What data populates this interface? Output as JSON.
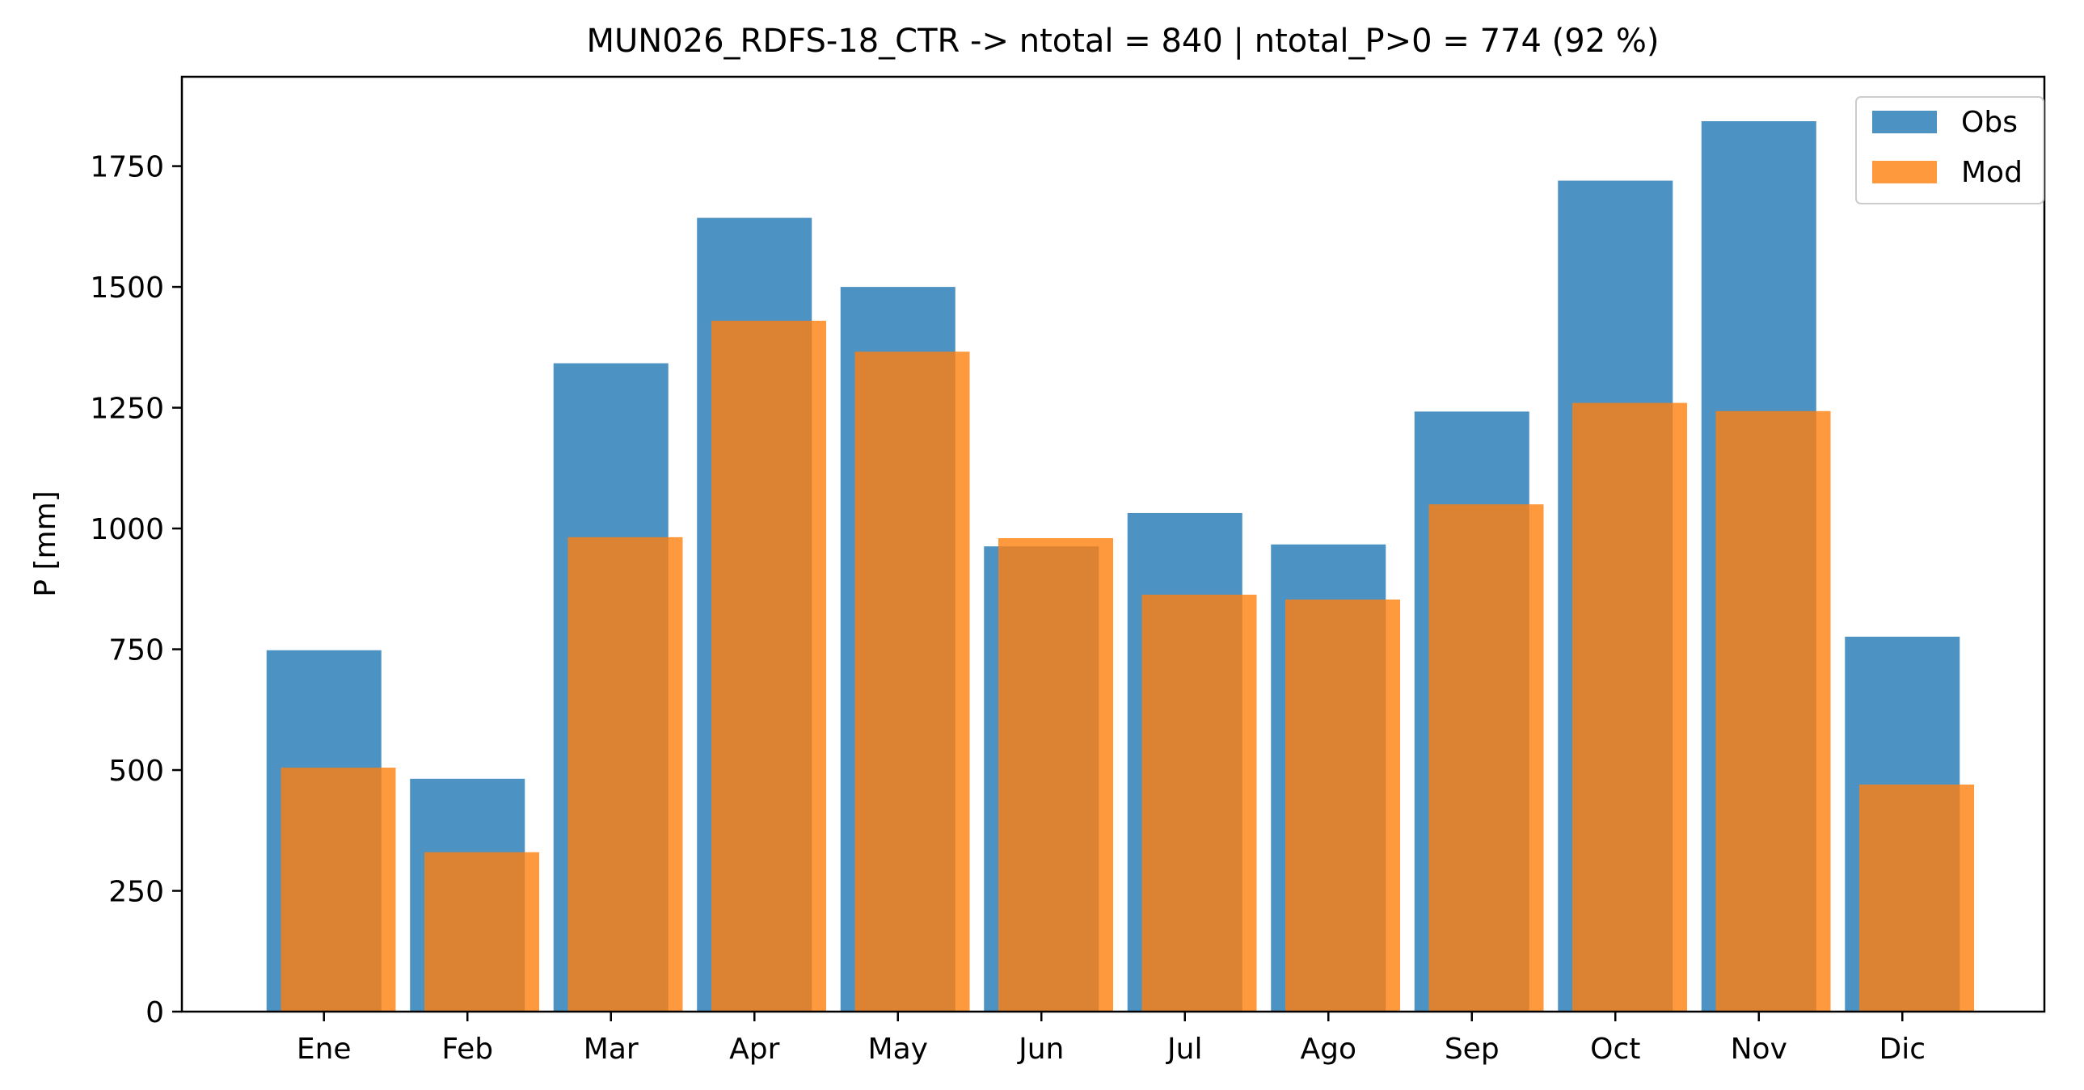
{
  "chart_data": {
    "type": "bar",
    "title": "MUN026_RDFS-18_CTR -> ntotal = 840 | ntotal_P>0 = 774 (92 %)",
    "xlabel": "",
    "ylabel": "P [mm]",
    "ylim": [
      0,
      1935
    ],
    "yticks": [
      0,
      250,
      500,
      750,
      1000,
      1250,
      1500,
      1750
    ],
    "categories": [
      "Ene",
      "Feb",
      "Mar",
      "Apr",
      "May",
      "Jun",
      "Jul",
      "Ago",
      "Sep",
      "Oct",
      "Nov",
      "Dic"
    ],
    "series": [
      {
        "name": "Obs",
        "color": "#1f77b4",
        "values": [
          748,
          482,
          1342,
          1643,
          1500,
          963,
          1032,
          967,
          1242,
          1720,
          1843,
          776
        ]
      },
      {
        "name": "Mod",
        "color": "#ff7f0e",
        "values": [
          505,
          330,
          982,
          1430,
          1366,
          980,
          863,
          853,
          1050,
          1260,
          1243,
          470
        ]
      }
    ],
    "legend_position": "top-right",
    "grid": false
  }
}
